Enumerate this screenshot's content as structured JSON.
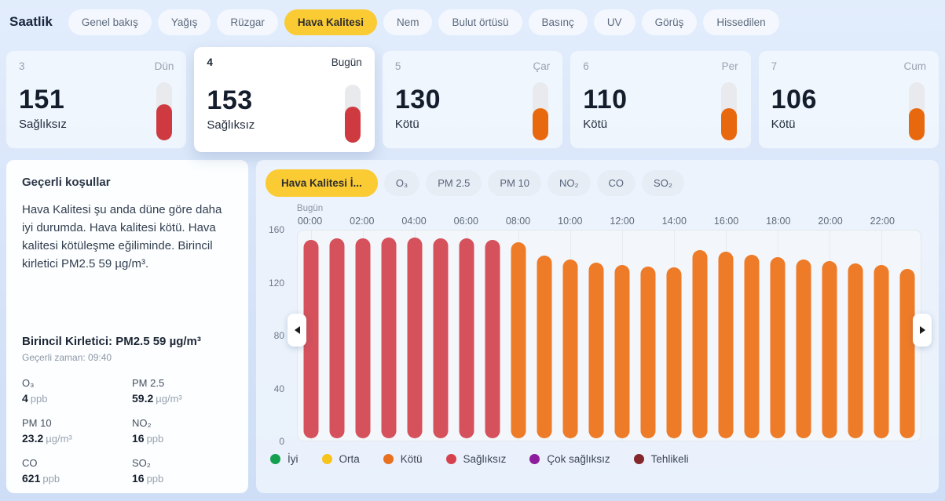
{
  "header": {
    "title": "Saatlik"
  },
  "tabs": [
    {
      "label": "Genel bakış",
      "selected": false
    },
    {
      "label": "Yağış",
      "selected": false
    },
    {
      "label": "Rüzgar",
      "selected": false
    },
    {
      "label": "Hava Kalitesi",
      "selected": true
    },
    {
      "label": "Nem",
      "selected": false
    },
    {
      "label": "Bulut örtüsü",
      "selected": false
    },
    {
      "label": "Basınç",
      "selected": false
    },
    {
      "label": "UV",
      "selected": false
    },
    {
      "label": "Görüş",
      "selected": false
    },
    {
      "label": "Hissedilen",
      "selected": false
    }
  ],
  "accent_color": "#fbcb33",
  "day_cards": [
    {
      "date": "3",
      "day": "Dün",
      "aqi": "151",
      "category": "Sağlıksız",
      "gauge_color": "#cf3a41",
      "gauge_fill_pct": 62,
      "selected": false
    },
    {
      "date": "4",
      "day": "Bugün",
      "aqi": "153",
      "category": "Sağlıksız",
      "gauge_color": "#cf3a41",
      "gauge_fill_pct": 62,
      "selected": true
    },
    {
      "date": "5",
      "day": "Çar",
      "aqi": "130",
      "category": "Kötü",
      "gauge_color": "#e8680e",
      "gauge_fill_pct": 55,
      "selected": false
    },
    {
      "date": "6",
      "day": "Per",
      "aqi": "110",
      "category": "Kötü",
      "gauge_color": "#e8680e",
      "gauge_fill_pct": 55,
      "selected": false
    },
    {
      "date": "7",
      "day": "Cum",
      "aqi": "106",
      "category": "Kötü",
      "gauge_color": "#e8680e",
      "gauge_fill_pct": 55,
      "selected": false
    }
  ],
  "conditions": {
    "title": "Geçerli koşullar",
    "summary": "Hava Kalitesi şu anda düne göre daha iyi durumda. Hava kalitesi kötü. Hava kalitesi kötüleşme eğiliminde. Birincil kirletici PM2.5 59 µg/m³.",
    "primary_pollutant": "Birincil Kirletici: PM2.5 59 µg/m³",
    "current_time_label": "Geçerli zaman: 09:40"
  },
  "readings": [
    {
      "name": "O₃",
      "value": "4",
      "unit": "ppb"
    },
    {
      "name": "PM 2.5",
      "value": "59.2",
      "unit": "µg/m³"
    },
    {
      "name": "PM 10",
      "value": "23.2",
      "unit": "µg/m³"
    },
    {
      "name": "NO₂",
      "value": "16",
      "unit": "ppb"
    },
    {
      "name": "CO",
      "value": "621",
      "unit": "ppb"
    },
    {
      "name": "SO₂",
      "value": "16",
      "unit": "ppb"
    }
  ],
  "series_tabs": [
    {
      "label": "Hava Kalitesi İ...",
      "selected": true
    },
    {
      "label": "O₃",
      "selected": false
    },
    {
      "label": "PM 2.5",
      "selected": false
    },
    {
      "label": "PM 10",
      "selected": false
    },
    {
      "label": "NO₂",
      "selected": false
    },
    {
      "label": "CO",
      "selected": false
    },
    {
      "label": "SO₂",
      "selected": false
    }
  ],
  "chart_data": {
    "type": "bar",
    "title": "Hava Kalitesi İ...",
    "x_group_label": "Bugün",
    "x": [
      "00:00",
      "01:00",
      "02:00",
      "03:00",
      "04:00",
      "05:00",
      "06:00",
      "07:00",
      "08:00",
      "09:00",
      "10:00",
      "11:00",
      "12:00",
      "13:00",
      "14:00",
      "15:00",
      "16:00",
      "17:00",
      "18:00",
      "19:00",
      "20:00",
      "21:00",
      "22:00",
      "23:00"
    ],
    "x_tick_every": 2,
    "values": [
      151,
      152,
      152,
      153,
      153,
      152,
      152,
      151,
      149,
      139,
      136,
      134,
      132,
      131,
      130,
      143,
      142,
      140,
      138,
      136,
      135,
      133,
      132,
      129
    ],
    "bar_categories": [
      "Sağlıksız",
      "Sağlıksız",
      "Sağlıksız",
      "Sağlıksız",
      "Sağlıksız",
      "Sağlıksız",
      "Sağlıksız",
      "Sağlıksız",
      "Kötü",
      "Kötü",
      "Kötü",
      "Kötü",
      "Kötü",
      "Kötü",
      "Kötü",
      "Kötü",
      "Kötü",
      "Kötü",
      "Kötü",
      "Kötü",
      "Kötü",
      "Kötü",
      "Kötü",
      "Kötü"
    ],
    "category_colors": {
      "Sağlıksız": "#d5515b",
      "Kötü": "#ee7b28"
    },
    "yticks": [
      160,
      120,
      80,
      40,
      0
    ],
    "ylim": [
      0,
      160
    ],
    "grid": "vertical-ticks-only",
    "legend_position": "bottom"
  },
  "legend": [
    {
      "label": "İyi",
      "color": "#14a04f"
    },
    {
      "label": "Orta",
      "color": "#f7c31c"
    },
    {
      "label": "Kötü",
      "color": "#e8701f"
    },
    {
      "label": "Sağlıksız",
      "color": "#d5424e"
    },
    {
      "label": "Çok sağlıksız",
      "color": "#8e1c9c"
    },
    {
      "label": "Tehlikeli",
      "color": "#84272a"
    }
  ]
}
